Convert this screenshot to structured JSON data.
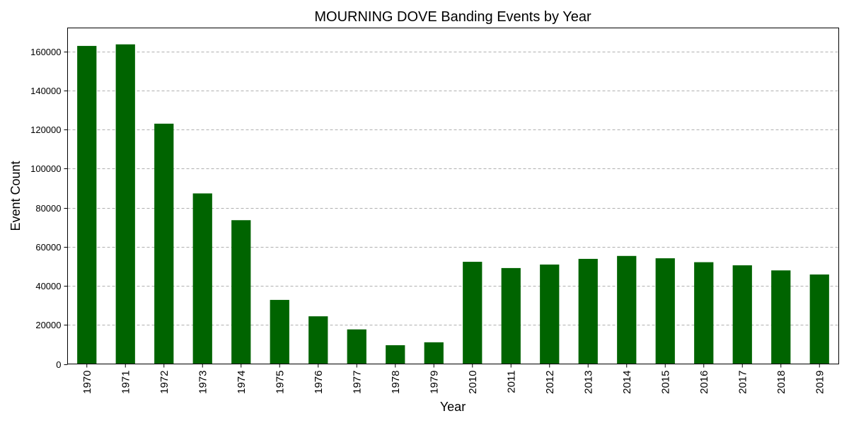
{
  "chart_data": {
    "type": "bar",
    "title": "MOURNING DOVE Banding Events by Year",
    "xlabel": "Year",
    "ylabel": "Event Count",
    "categories": [
      "1970",
      "1971",
      "1972",
      "1973",
      "1974",
      "1975",
      "1976",
      "1977",
      "1978",
      "1979",
      "2010",
      "2011",
      "2012",
      "2013",
      "2014",
      "2015",
      "2016",
      "2017",
      "2018",
      "2019"
    ],
    "values": [
      162800,
      163600,
      123000,
      87300,
      73600,
      32800,
      24400,
      17700,
      9600,
      11100,
      52300,
      49100,
      50900,
      53800,
      55300,
      54100,
      52100,
      50500,
      47900,
      45800
    ],
    "ylim": [
      0,
      172000
    ],
    "yticks": [
      0,
      20000,
      40000,
      60000,
      80000,
      100000,
      120000,
      140000,
      160000
    ],
    "grid": "y, dashed",
    "bar_color": "#006400"
  }
}
